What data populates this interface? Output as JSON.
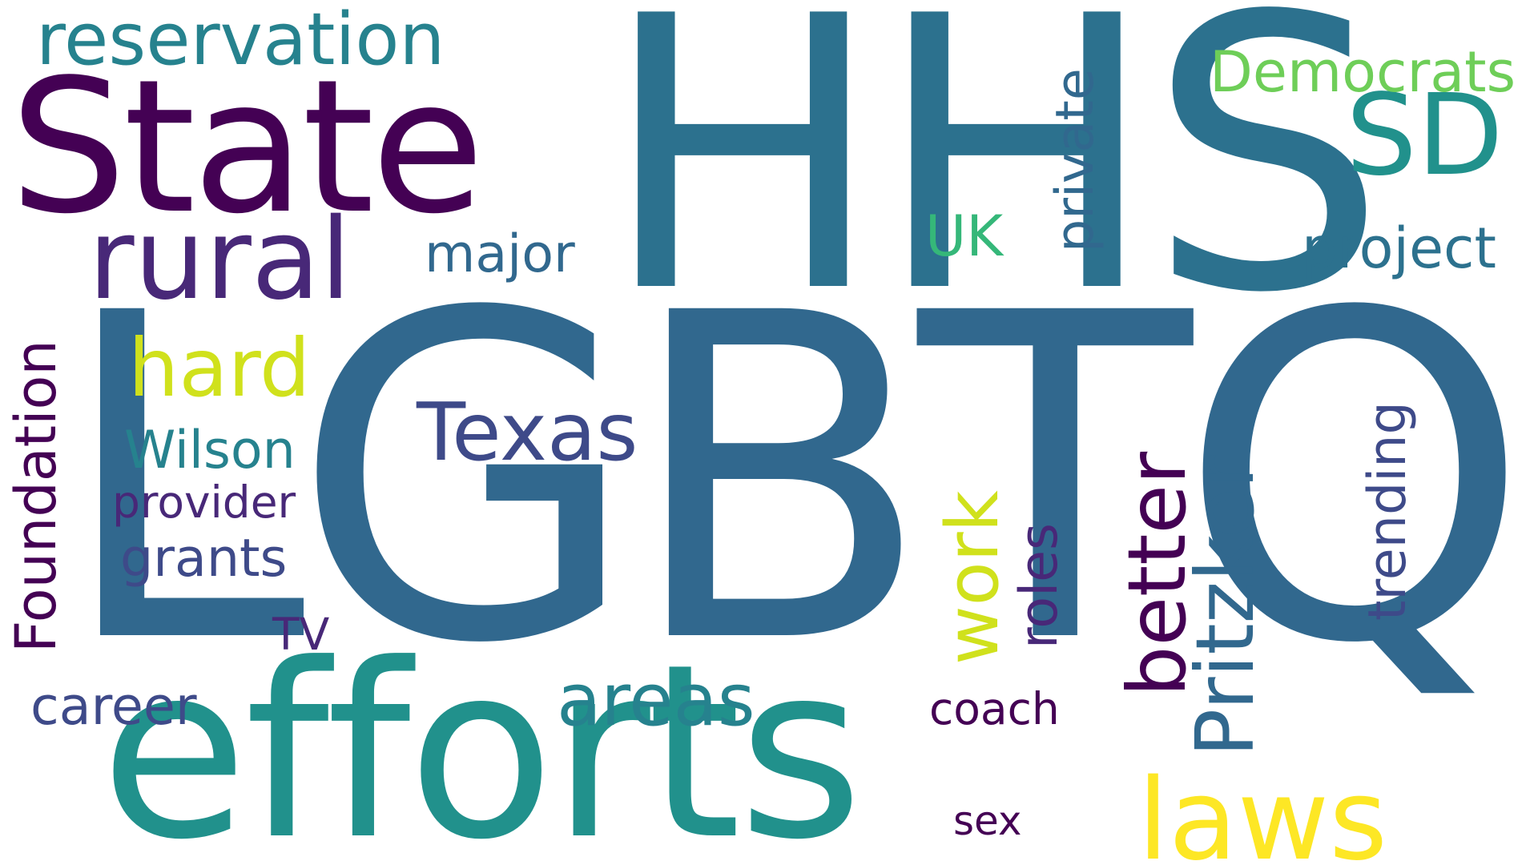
{
  "words": {
    "lgbtq": "LGBTQ",
    "hhs": "HHS",
    "efforts": "efforts",
    "state": "State",
    "rural": "rural",
    "sd": "SD",
    "laws": "laws",
    "reservation": "reservation",
    "texas": "Texas",
    "hard": "hard",
    "areas": "areas",
    "democrats": "Democrats",
    "project": "project",
    "major": "major",
    "uk": "UK",
    "wilson": "Wilson",
    "provider": "provider",
    "grants": "grants",
    "tv": "TV",
    "career": "career",
    "coach": "coach",
    "sex": "sex",
    "private": "private",
    "foundation": "Foundation",
    "work": "work",
    "roles": "roles",
    "better": "better",
    "pritzker": "Pritzker",
    "trending": "trending"
  },
  "colors": {
    "background": "#ffffff",
    "palette": [
      "#440154",
      "#482878",
      "#3e4a89",
      "#31688e",
      "#26828e",
      "#21918c",
      "#35b779",
      "#6ece58",
      "#d0e11c",
      "#fde725"
    ]
  }
}
